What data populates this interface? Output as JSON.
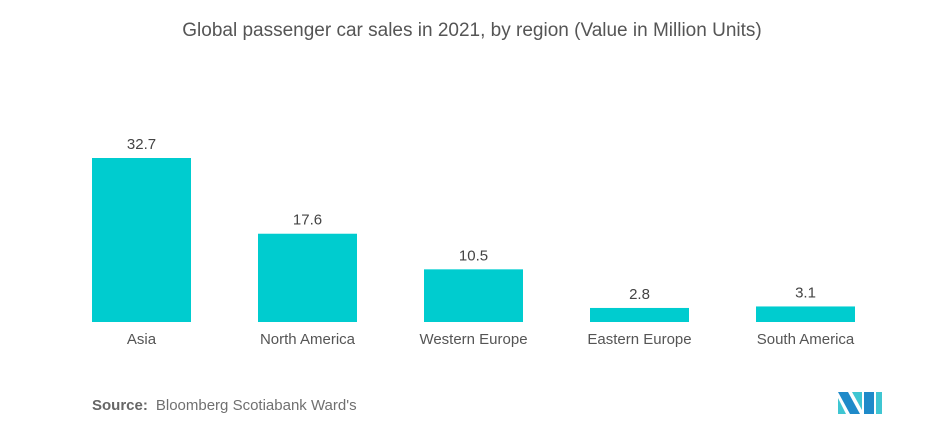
{
  "chart_data": {
    "type": "bar",
    "title": "Global passenger car sales in 2021, by region (Value in Million Units)",
    "categories": [
      "Asia",
      "North America",
      "Western Europe",
      "Eastern Europe",
      "South America"
    ],
    "values": [
      32.7,
      17.6,
      10.5,
      2.8,
      3.1
    ],
    "value_labels": [
      "32.7",
      "17.6",
      "10.5",
      "2.8",
      "3.1"
    ],
    "xlabel": "",
    "ylabel": "",
    "ylim": [
      0,
      32.7
    ],
    "grid": false,
    "legend": "none",
    "bar_color": "#00cccf"
  },
  "source": {
    "label": "Source:",
    "text": "Bloomberg Scotiabank Ward's"
  },
  "logo": {
    "icon": "mordor-intelligence-logo-icon",
    "colors": [
      "#1f8ac9",
      "#3fc6d2"
    ]
  }
}
